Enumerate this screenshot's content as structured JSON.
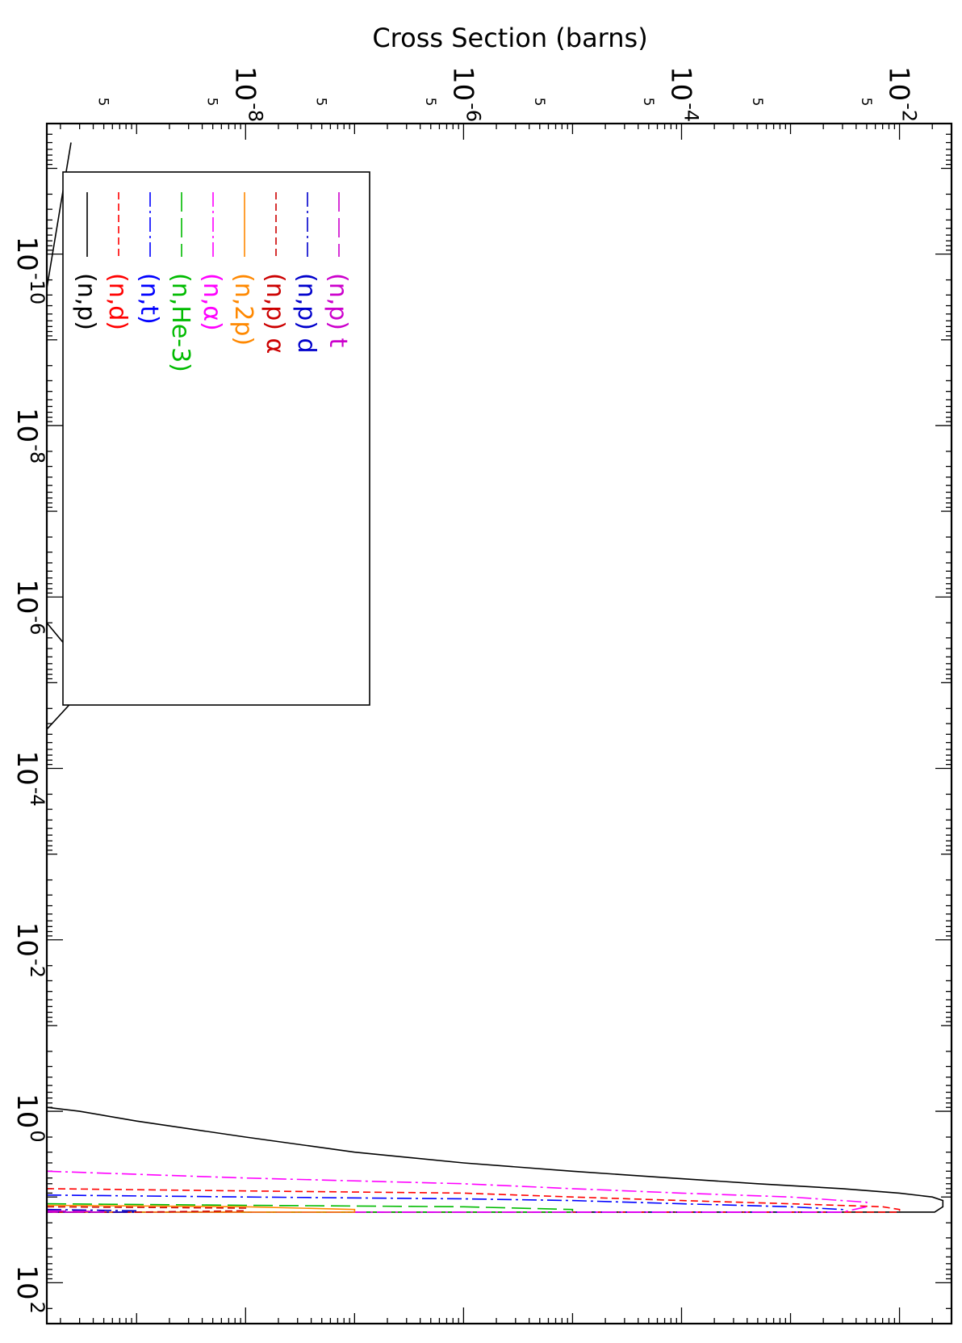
{
  "chart_data": {
    "type": "line",
    "orientation": "rotated-90",
    "ylabel": "Cross Section (barns)",
    "xlabel": "",
    "x_scale": "log",
    "y_scale": "log",
    "xlim": [
      3e-12,
      300
    ],
    "ylim": [
      1.5e-10,
      0.03
    ],
    "x_ticks": [
      {
        "value": 1e-10,
        "base": "10",
        "exp": "-10"
      },
      {
        "value": 1e-08,
        "base": "10",
        "exp": "-8"
      },
      {
        "value": 1e-06,
        "base": "10",
        "exp": "-6"
      },
      {
        "value": 0.0001,
        "base": "10",
        "exp": "-4"
      },
      {
        "value": 0.01,
        "base": "10",
        "exp": "-2"
      },
      {
        "value": 1,
        "base": "10",
        "exp": "0"
      },
      {
        "value": 100,
        "base": "10",
        "exp": "2"
      }
    ],
    "y_ticks": [
      {
        "value": 0.01,
        "base": "10",
        "exp": "-2"
      },
      {
        "value": 0.0001,
        "base": "10",
        "exp": "-4"
      },
      {
        "value": 1e-06,
        "base": "10",
        "exp": "-6"
      },
      {
        "value": 1e-08,
        "base": "10",
        "exp": "-8"
      }
    ],
    "y_minor_label": "5",
    "y_minor_values": [
      0.005,
      0.0005,
      5e-05,
      5e-06,
      5e-07,
      5e-08,
      5e-09,
      5e-10
    ],
    "legend_placement": "bottom-left",
    "series": [
      {
        "name": "(n,p)",
        "color": "#000000",
        "dash": "solid",
        "points": [
          [
            5e-12,
            2.5e-10
          ],
          [
            2.5e-10,
            1.5e-10
          ],
          [
            2e-06,
            1.5e-10
          ],
          [
            9e-06,
            4e-10
          ],
          [
            3.5e-05,
            1.5e-10
          ],
          [
            0.0001,
            1.5e-10
          ],
          [
            0.9,
            1.5e-10
          ],
          [
            1.0,
            3e-10
          ],
          [
            1.3,
            1e-09
          ],
          [
            2.0,
            1e-08
          ],
          [
            3.0,
            1e-07
          ],
          [
            4.0,
            1e-06
          ],
          [
            5.0,
            1e-05
          ],
          [
            6.0,
            8e-05
          ],
          [
            7.0,
            0.0005
          ],
          [
            8.0,
            0.003
          ],
          [
            9.0,
            0.01
          ],
          [
            10.0,
            0.02
          ],
          [
            11.0,
            0.025
          ],
          [
            13.0,
            0.025
          ],
          [
            15.0,
            0.021
          ],
          [
            15.0,
            1.5e-10
          ]
        ]
      },
      {
        "name": "(n,d)",
        "color": "#ff0000",
        "dash": "dash",
        "points": [
          [
            8.0,
            1.5e-10
          ],
          [
            8.5,
            1e-08
          ],
          [
            9.0,
            1e-06
          ],
          [
            10.0,
            1e-05
          ],
          [
            11.0,
            0.0001
          ],
          [
            12.0,
            0.001
          ],
          [
            13.0,
            0.007
          ],
          [
            14.0,
            0.01
          ],
          [
            15.0,
            0.01
          ],
          [
            15.0,
            1.5e-10
          ]
        ]
      },
      {
        "name": "(n,t)",
        "color": "#0000ff",
        "dash": "dash-dot",
        "points": [
          [
            9.5,
            1.5e-10
          ],
          [
            10.0,
            1e-08
          ],
          [
            10.5,
            1e-06
          ],
          [
            11.0,
            1e-05
          ],
          [
            12.0,
            0.0001
          ],
          [
            13.0,
            0.001
          ],
          [
            14.0,
            0.003
          ],
          [
            15.0,
            0.003
          ],
          [
            15.0,
            1.5e-10
          ]
        ]
      },
      {
        "name": "(n,He-3)",
        "color": "#00bb00",
        "dash": "long-dash",
        "points": [
          [
            12.0,
            1.5e-10
          ],
          [
            12.5,
            1e-08
          ],
          [
            13.0,
            1e-06
          ],
          [
            14.0,
            1e-05
          ],
          [
            15.0,
            1e-05
          ],
          [
            15.0,
            1.5e-10
          ]
        ]
      },
      {
        "name": "(n,α)",
        "color": "#ff00ff",
        "dash": "dash-dot",
        "points": [
          [
            5.0,
            1.5e-10
          ],
          [
            6.0,
            1e-08
          ],
          [
            7.0,
            1e-06
          ],
          [
            8.0,
            1e-05
          ],
          [
            9.0,
            0.0001
          ],
          [
            10.0,
            0.001
          ],
          [
            11.5,
            0.005
          ],
          [
            13.0,
            0.005
          ],
          [
            15.0,
            0.003
          ],
          [
            15.0,
            1.5e-10
          ]
        ]
      },
      {
        "name": "(n,2p)",
        "color": "#ff8800",
        "dash": "solid",
        "points": [
          [
            12.5,
            1.5e-10
          ],
          [
            13.0,
            1e-08
          ],
          [
            14.0,
            1e-07
          ],
          [
            15.0,
            1e-07
          ],
          [
            15.0,
            1.5e-10
          ]
        ]
      },
      {
        "name": "(n,p) α",
        "color": "#cc0000",
        "dash": "dash",
        "points": [
          [
            13.0,
            1.5e-10
          ],
          [
            13.5,
            1e-08
          ],
          [
            14.5,
            1e-08
          ],
          [
            15.0,
            1e-09
          ],
          [
            15.0,
            1.5e-10
          ]
        ]
      },
      {
        "name": "(n,p) d",
        "color": "#0000cc",
        "dash": "dash-dot",
        "points": [
          [
            14.0,
            1.5e-10
          ],
          [
            14.5,
            1e-09
          ],
          [
            15.0,
            1e-09
          ],
          [
            15.0,
            1.5e-10
          ]
        ]
      },
      {
        "name": "(n,p) t",
        "color": "#cc00cc",
        "dash": "long-dash",
        "points": [
          [
            14.5,
            1.5e-10
          ],
          [
            14.8,
            5e-10
          ],
          [
            15.0,
            5e-10
          ],
          [
            15.0,
            1.5e-10
          ]
        ]
      }
    ]
  }
}
